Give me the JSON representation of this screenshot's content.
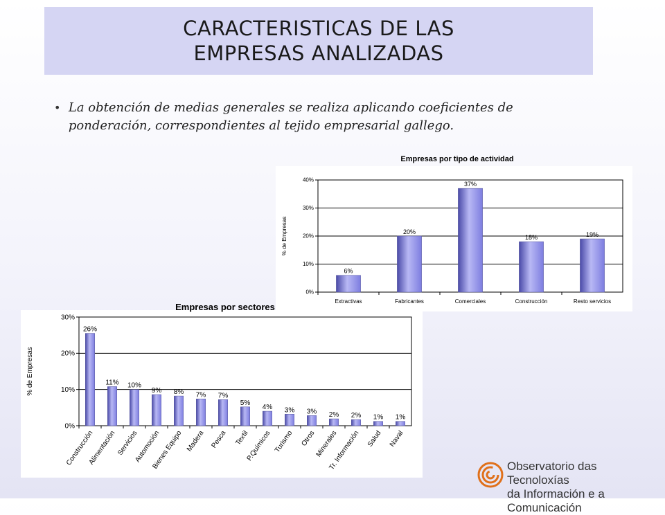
{
  "slide": {
    "title": "CARACTERISTICAS DE LAS EMPRESAS ANALIZADAS",
    "bullet": "La obtención de medias generales se realiza aplicando coeficientes de ponderación, correspondientes al tejido empresarial gallego.",
    "bullet_symbol": "•"
  },
  "logo": {
    "line1": "Observatorio das Tecnoloxías",
    "line2": "da Información e a Comunicación",
    "icon": "spiral-logo-icon",
    "color": "#e0701a"
  },
  "colors": {
    "bar": "#7d7de0",
    "bar_dark": "#4a4aa8",
    "bar_light": "#b8b8f4",
    "chart_bg": "#ffffff"
  },
  "chart_data": [
    {
      "type": "bar",
      "title": "Empresas por tipo de actividad",
      "ylabel": "% de Empresas",
      "xlabel": "",
      "categories": [
        "Extractivas",
        "Fabricantes",
        "Comerciales",
        "Construcción",
        "Resto servicios"
      ],
      "values": [
        6,
        20,
        37,
        18,
        19
      ],
      "labels": [
        "6%",
        "20%",
        "37%",
        "18%",
        "19%"
      ],
      "yticks": [
        "0%",
        "10%",
        "20%",
        "30%",
        "40%"
      ],
      "ylim": [
        0,
        40
      ],
      "grid": true,
      "legend": "none"
    },
    {
      "type": "bar",
      "title": "Empresas por sectores",
      "ylabel": "% de Empresas",
      "xlabel": "",
      "categories": [
        "Construcción",
        "Alimentación",
        "Servicios",
        "Automoción",
        "Bienes Equipo",
        "Madera",
        "Pesca",
        "Textil",
        "P.Químicos",
        "Turismo",
        "Otros",
        "Minerales",
        "Tr. Información",
        "Salud",
        "Naval"
      ],
      "values": [
        25.5,
        10.8,
        10,
        8.6,
        8.2,
        7.4,
        7.2,
        5.2,
        4,
        3.2,
        2.8,
        1.9,
        1.7,
        1.2,
        1.2
      ],
      "labels": [
        "26%",
        "11%",
        "10%",
        "9%",
        "8%",
        "7%",
        "7%",
        "5%",
        "4%",
        "3%",
        "3%",
        "2%",
        "2%",
        "1%",
        "1%"
      ],
      "yticks": [
        "0%",
        "10%",
        "20%",
        "30%"
      ],
      "ylim": [
        0,
        30
      ],
      "grid": true,
      "legend": "none"
    }
  ]
}
